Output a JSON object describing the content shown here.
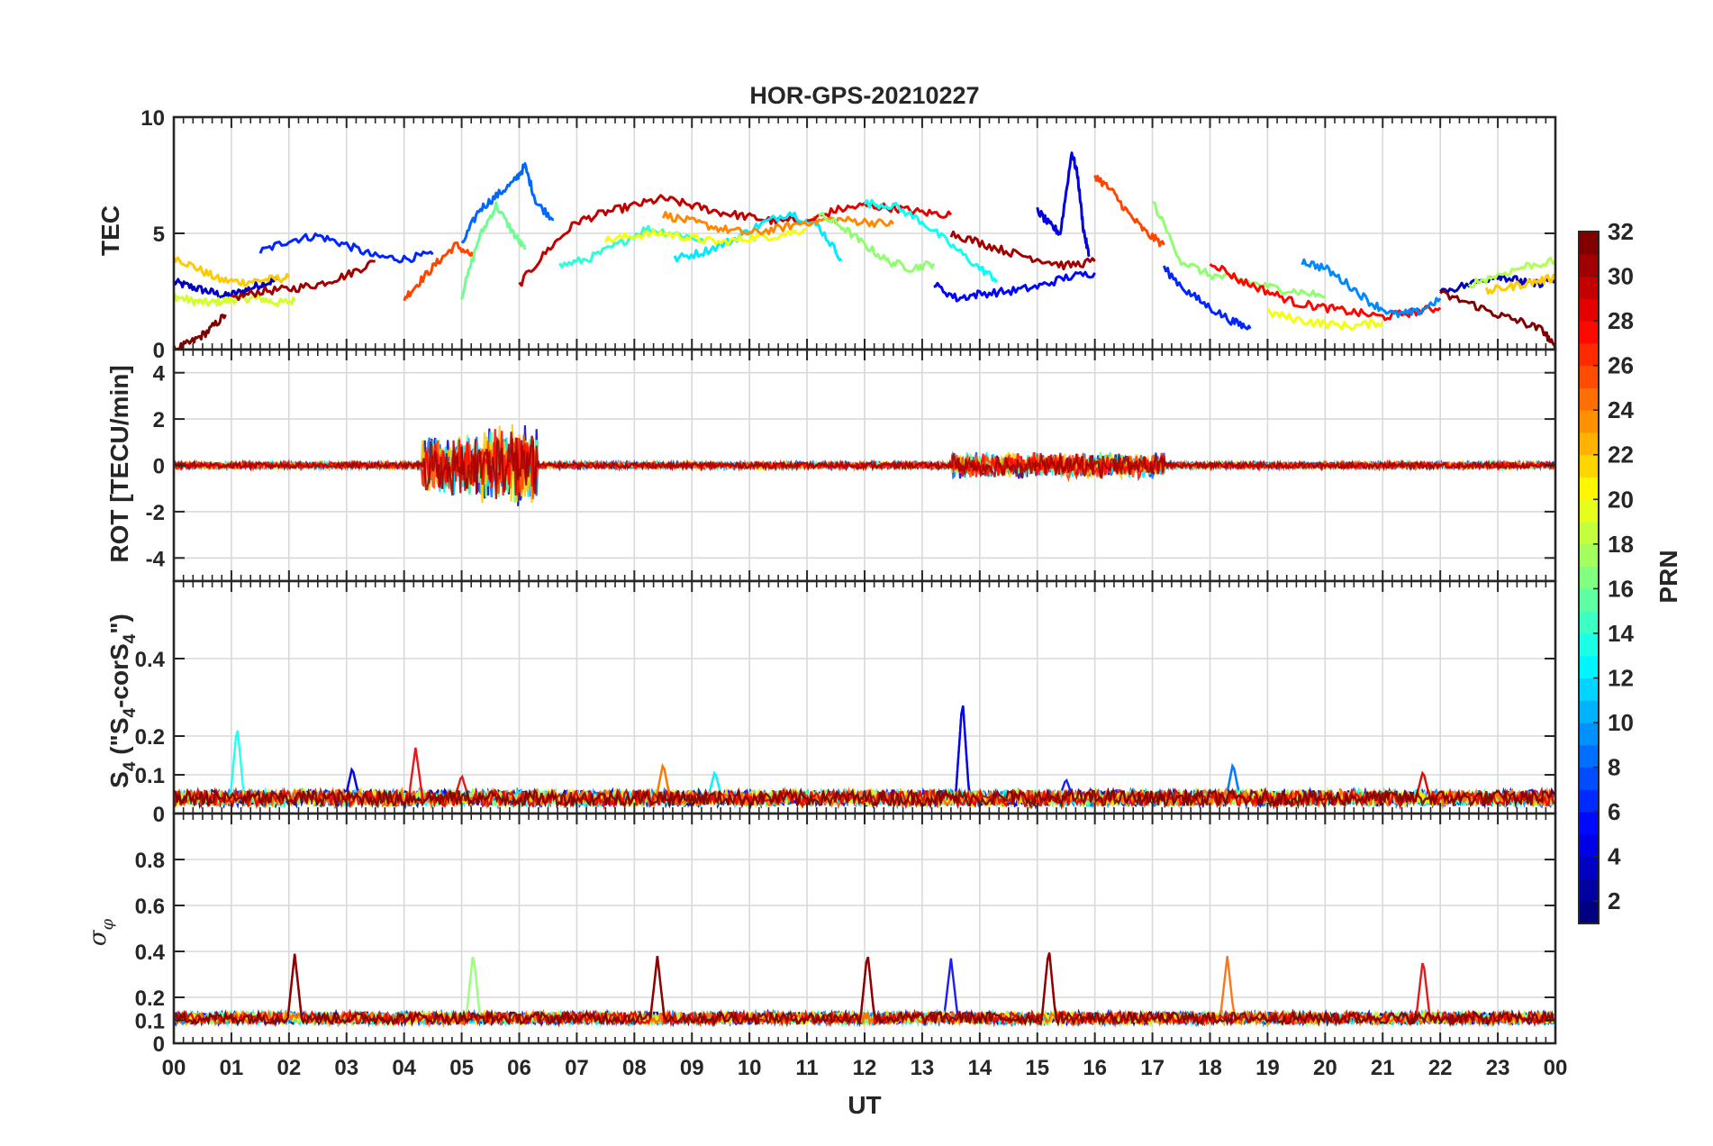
{
  "chart_data": [
    {
      "type": "line",
      "title": "HOR-GPS-20210227",
      "ylabel": "TEC",
      "ylim": [
        0,
        10
      ],
      "yticks": [
        0,
        5,
        10
      ],
      "x_range_ut_hours": [
        0,
        24
      ],
      "grid": true,
      "note_series": "approximate per-PRN traces; color by PRN",
      "series": [
        {
          "prn": 3,
          "x": [
            0.0,
            0.3,
            0.6,
            0.9,
            1.2,
            1.5,
            1.8
          ],
          "y": [
            2.9,
            2.7,
            2.5,
            2.3,
            2.5,
            2.8,
            3.0
          ]
        },
        {
          "prn": 19,
          "x": [
            0.0,
            0.3,
            0.6,
            0.9,
            1.2,
            1.5,
            1.8,
            2.1
          ],
          "y": [
            2.3,
            2.1,
            2.0,
            2.1,
            2.2,
            2.2,
            2.0,
            2.1
          ]
        },
        {
          "prn": 22,
          "x": [
            0.0,
            0.4,
            0.8,
            1.2,
            1.6,
            2.0
          ],
          "y": [
            4.0,
            3.5,
            3.0,
            2.9,
            3.0,
            3.1
          ]
        },
        {
          "prn": 32,
          "x": [
            0.0,
            0.3,
            0.6,
            0.9
          ],
          "y": [
            0.0,
            0.3,
            0.8,
            1.5
          ]
        },
        {
          "prn": 6,
          "x": [
            1.5,
            2.0,
            2.5,
            3.0,
            3.5,
            4.0,
            4.5
          ],
          "y": [
            4.2,
            4.7,
            4.9,
            4.5,
            4.0,
            3.9,
            4.1
          ]
        },
        {
          "prn": 31,
          "x": [
            1.0,
            1.5,
            2.0,
            2.5,
            3.0,
            3.5
          ],
          "y": [
            2.2,
            2.5,
            2.6,
            2.8,
            3.2,
            3.8
          ]
        },
        {
          "prn": 26,
          "x": [
            4.0,
            4.3,
            4.6,
            4.9,
            5.2
          ],
          "y": [
            2.2,
            3.0,
            3.8,
            4.5,
            4.0
          ]
        },
        {
          "prn": 8,
          "x": [
            5.0,
            5.3,
            5.6,
            5.9,
            6.1,
            6.3,
            6.6
          ],
          "y": [
            4.5,
            6.0,
            6.6,
            7.2,
            7.9,
            6.3,
            5.6
          ]
        },
        {
          "prn": 16,
          "x": [
            5.0,
            5.3,
            5.6,
            5.9,
            6.1
          ],
          "y": [
            2.3,
            4.8,
            6.2,
            5.0,
            4.3
          ]
        },
        {
          "prn": 30,
          "x": [
            6.0,
            6.5,
            7.0,
            7.5,
            8.0,
            8.5,
            9.0,
            9.5,
            10.0,
            10.5,
            11.0
          ],
          "y": [
            2.8,
            4.3,
            5.5,
            5.9,
            6.2,
            6.5,
            6.2,
            5.9,
            5.7,
            5.5,
            5.6
          ]
        },
        {
          "prn": 14,
          "x": [
            6.7,
            7.2,
            7.7,
            8.2,
            8.7,
            9.2
          ],
          "y": [
            3.6,
            3.9,
            4.5,
            5.2,
            5.0,
            4.7
          ]
        },
        {
          "prn": 12,
          "x": [
            8.7,
            9.2,
            9.7,
            10.2,
            10.7,
            11.2,
            11.6
          ],
          "y": [
            3.9,
            4.2,
            4.7,
            5.4,
            5.9,
            5.3,
            3.9
          ]
        },
        {
          "prn": 20,
          "x": [
            7.5,
            8.0,
            8.5,
            9.0,
            9.5,
            10.0,
            10.5,
            11.0
          ],
          "y": [
            4.7,
            4.9,
            5.0,
            4.8,
            4.6,
            4.8,
            4.9,
            5.2
          ]
        },
        {
          "prn": 24,
          "x": [
            8.5,
            9.0,
            9.5,
            10.0,
            10.5,
            11.0,
            11.5,
            12.0,
            12.5
          ],
          "y": [
            5.8,
            5.5,
            5.2,
            5.0,
            5.2,
            5.5,
            5.6,
            5.5,
            5.4
          ]
        },
        {
          "prn": 29,
          "x": [
            11.0,
            11.5,
            12.0,
            12.5,
            13.0,
            13.5
          ],
          "y": [
            5.5,
            6.0,
            6.2,
            6.1,
            5.9,
            5.8
          ]
        },
        {
          "prn": 13,
          "x": [
            12.0,
            12.5,
            13.0,
            13.5,
            14.0,
            14.3
          ],
          "y": [
            6.3,
            6.2,
            5.5,
            4.5,
            3.5,
            3.0
          ]
        },
        {
          "prn": 17,
          "x": [
            11.2,
            11.6,
            12.0,
            12.4,
            12.8,
            13.2
          ],
          "y": [
            5.8,
            5.3,
            4.5,
            3.8,
            3.5,
            3.7
          ]
        },
        {
          "prn": 5,
          "x": [
            13.2,
            13.6,
            14.0,
            14.5,
            15.0,
            15.5,
            16.0
          ],
          "y": [
            2.8,
            2.2,
            2.4,
            2.5,
            2.7,
            3.1,
            3.3
          ]
        },
        {
          "prn": 31,
          "x": [
            13.5,
            14.0,
            14.5,
            15.0,
            15.5,
            16.0
          ],
          "y": [
            5.0,
            4.6,
            4.2,
            3.9,
            3.6,
            3.8
          ]
        },
        {
          "prn": 4,
          "x": [
            15.0,
            15.2,
            15.4,
            15.6,
            15.7,
            15.8,
            15.9
          ],
          "y": [
            6.0,
            5.4,
            5.0,
            8.5,
            7.5,
            5.2,
            4.0
          ]
        },
        {
          "prn": 26,
          "x": [
            16.0,
            16.3,
            16.6,
            16.9,
            17.2
          ],
          "y": [
            7.5,
            6.8,
            5.8,
            5.0,
            4.5
          ]
        },
        {
          "prn": 17,
          "x": [
            17.0,
            17.5,
            18.0,
            18.5,
            19.0,
            19.5,
            20.0
          ],
          "y": [
            6.4,
            3.8,
            3.2,
            3.0,
            2.7,
            2.5,
            2.3
          ]
        },
        {
          "prn": 6,
          "x": [
            17.2,
            17.6,
            18.0,
            18.4,
            18.7
          ],
          "y": [
            3.5,
            2.5,
            1.8,
            1.2,
            0.9
          ]
        },
        {
          "prn": 28,
          "x": [
            18.0,
            18.5,
            19.0,
            19.5,
            20.0,
            20.5,
            21.0,
            21.5,
            22.0
          ],
          "y": [
            3.8,
            3.0,
            2.5,
            2.0,
            1.8,
            1.6,
            1.4,
            1.6,
            1.8
          ]
        },
        {
          "prn": 9,
          "x": [
            19.6,
            20.0,
            20.4,
            20.8,
            21.2,
            21.6,
            22.0
          ],
          "y": [
            3.8,
            3.5,
            2.8,
            2.0,
            1.5,
            1.6,
            2.2
          ]
        },
        {
          "prn": 20,
          "x": [
            19.0,
            19.5,
            20.0,
            20.5,
            21.0
          ],
          "y": [
            1.6,
            1.3,
            1.1,
            1.0,
            1.2
          ]
        },
        {
          "prn": 3,
          "x": [
            22.0,
            22.5,
            23.0,
            23.3,
            23.6,
            24.0
          ],
          "y": [
            2.5,
            2.8,
            3.2,
            3.0,
            2.8,
            3.0
          ]
        },
        {
          "prn": 32,
          "x": [
            22.0,
            22.5,
            23.0,
            23.4,
            23.8,
            24.0
          ],
          "y": [
            2.4,
            2.0,
            1.5,
            1.2,
            0.8,
            0.0
          ]
        },
        {
          "prn": 18,
          "x": [
            22.5,
            23.0,
            23.5,
            24.0
          ],
          "y": [
            2.8,
            3.2,
            3.6,
            3.8
          ]
        },
        {
          "prn": 22,
          "x": [
            22.8,
            23.2,
            23.6,
            24.0
          ],
          "y": [
            2.5,
            2.7,
            2.9,
            3.1
          ]
        }
      ]
    },
    {
      "type": "line",
      "ylabel": "ROT [TECU/min]",
      "ylim": [
        -5,
        5
      ],
      "yticks": [
        -4,
        -2,
        0,
        2,
        4
      ],
      "x_range_ut_hours": [
        0,
        24
      ],
      "grid": true,
      "note_series": "fluctuating around zero; bursts near 04-06 UT and 13.5-17 UT",
      "bursts": [
        {
          "x_range": [
            4.3,
            5.3
          ],
          "amplitude": 2.4
        },
        {
          "x_range": [
            5.3,
            6.3
          ],
          "amplitude": 3.0
        },
        {
          "x_range": [
            13.5,
            17.2
          ],
          "amplitude": 1.0
        }
      ],
      "baseline_amplitude": 0.2
    },
    {
      "type": "line",
      "ylabel": "S4 (\"S4-corS4\")",
      "ylabel_display": {
        "main": "S",
        "sub": "4",
        "open": " (\"S",
        "sub2": "4",
        "mid": "-corS",
        "sub3": "4",
        "close": "\")"
      },
      "ylim": [
        0,
        0.6
      ],
      "yticks": [
        0,
        0.1,
        0.2,
        0.4
      ],
      "x_range_ut_hours": [
        0,
        24
      ],
      "grid": true,
      "note_series": "baseline ~0.02-0.06 with spikes",
      "spikes": [
        {
          "prn": 13,
          "x": 1.1,
          "peak": 0.23
        },
        {
          "prn": 3,
          "x": 3.1,
          "peak": 0.12
        },
        {
          "prn": 28,
          "x": 4.2,
          "peak": 0.17
        },
        {
          "prn": 29,
          "x": 5.0,
          "peak": 0.1
        },
        {
          "prn": 23,
          "x": 8.5,
          "peak": 0.13
        },
        {
          "prn": 11,
          "x": 9.4,
          "peak": 0.11
        },
        {
          "prn": 3,
          "x": 13.7,
          "peak": 0.3
        },
        {
          "prn": 6,
          "x": 15.5,
          "peak": 0.09
        },
        {
          "prn": 7,
          "x": 18.4,
          "peak": 0.13
        },
        {
          "prn": 27,
          "x": 21.7,
          "peak": 0.11
        }
      ],
      "baseline": 0.04
    },
    {
      "type": "line",
      "ylabel": "σφ",
      "ylabel_display": {
        "main": "σ",
        "sub": "φ"
      },
      "ylim": [
        0,
        1
      ],
      "yticks": [
        0,
        0.1,
        0.2,
        0.4,
        0.6,
        0.8
      ],
      "xlabel": "UT",
      "xticks": [
        "00",
        "01",
        "02",
        "03",
        "04",
        "05",
        "06",
        "07",
        "08",
        "09",
        "10",
        "11",
        "12",
        "13",
        "14",
        "15",
        "16",
        "17",
        "18",
        "19",
        "20",
        "21",
        "22",
        "23",
        "00"
      ],
      "x_range_ut_hours": [
        0,
        24
      ],
      "grid": true,
      "baseline": 0.11,
      "spikes": [
        {
          "prn": 31,
          "x": 2.1,
          "peak": 0.39
        },
        {
          "prn": 16,
          "x": 5.2,
          "peak": 0.4
        },
        {
          "prn": 30,
          "x": 8.4,
          "peak": 0.38
        },
        {
          "prn": 31,
          "x": 12.05,
          "peak": 0.4
        },
        {
          "prn": 4,
          "x": 13.5,
          "peak": 0.37
        },
        {
          "prn": 31,
          "x": 15.2,
          "peak": 0.42
        },
        {
          "prn": 24,
          "x": 18.3,
          "peak": 0.38
        },
        {
          "prn": 28,
          "x": 21.7,
          "peak": 0.37
        }
      ]
    }
  ],
  "colorbar": {
    "label": "PRN",
    "range": [
      1,
      32
    ],
    "ticks": [
      2,
      4,
      6,
      8,
      10,
      12,
      14,
      16,
      18,
      20,
      22,
      24,
      26,
      28,
      30,
      32
    ],
    "colormap": "jet"
  },
  "tick_labels": {
    "tec": [
      "0",
      "5",
      "10"
    ],
    "rot": [
      "-4",
      "-2",
      "0",
      "2",
      "4"
    ],
    "s4": [
      "0",
      "0.1",
      "0.2",
      "0.4"
    ],
    "sigma": [
      "0",
      "0.1",
      "0.2",
      "0.4",
      "0.6",
      "0.8"
    ],
    "cbar": [
      "2",
      "4",
      "6",
      "8",
      "10",
      "12",
      "14",
      "16",
      "18",
      "20",
      "22",
      "24",
      "26",
      "28",
      "30",
      "32"
    ]
  }
}
